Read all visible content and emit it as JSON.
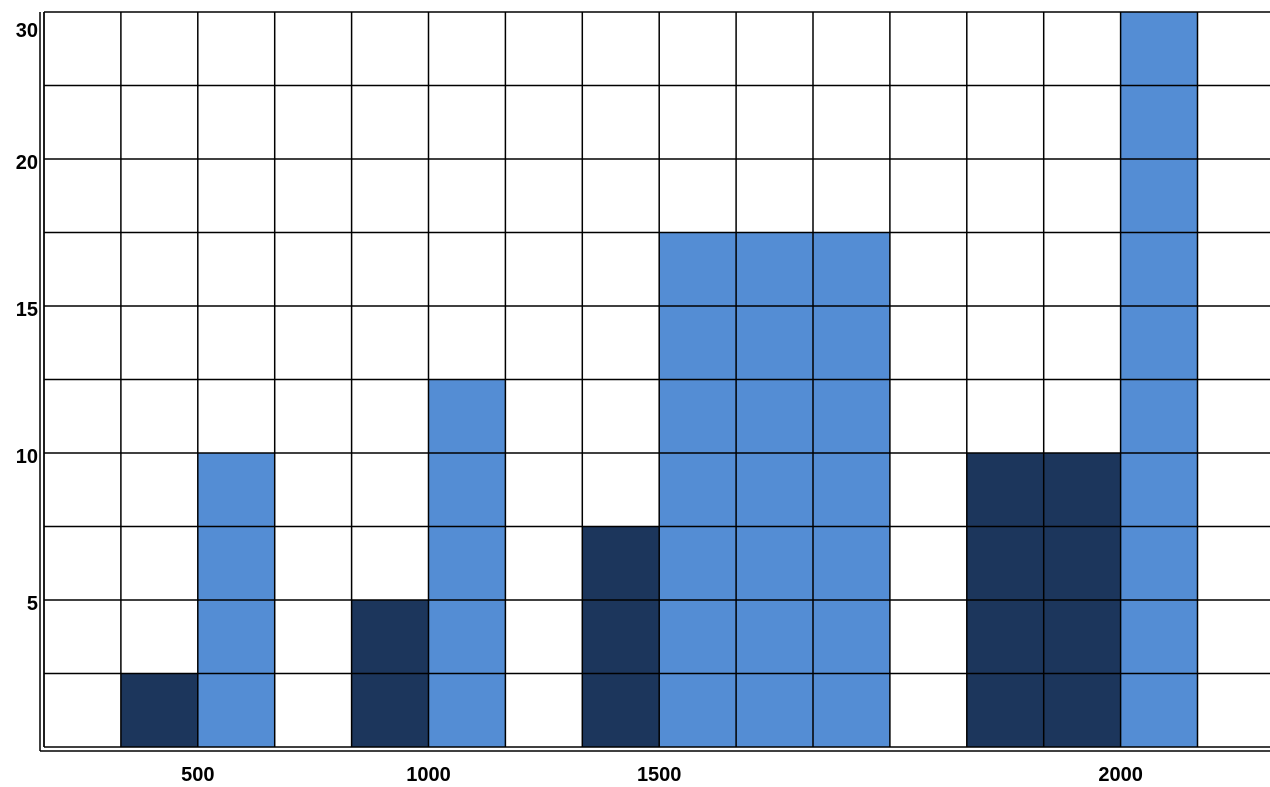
{
  "colors": {
    "dark_series": "#1c365c",
    "light_series": "#548dd4",
    "grid": "#000000",
    "background": "#ffffff"
  },
  "chart_data": {
    "type": "bar",
    "grid": true,
    "x_tick_labels": [
      "500",
      "1000",
      "1500",
      "2000"
    ],
    "y_tick_labels": [
      "5",
      "10",
      "15",
      "20",
      "30"
    ],
    "ylim": [
      0,
      30
    ],
    "cells_per_bar_unit": "blocks",
    "columns": [
      0,
      1,
      2,
      3,
      4,
      5,
      6,
      7,
      8,
      9,
      10,
      11,
      12,
      13,
      14,
      15
    ],
    "bars": [
      {
        "series": "dark",
        "column": 1,
        "blocks": 1
      },
      {
        "series": "light",
        "column": 2,
        "blocks": 4
      },
      {
        "series": "dark",
        "column": 4,
        "blocks": 2
      },
      {
        "series": "light",
        "column": 5,
        "blocks": 5
      },
      {
        "series": "dark",
        "column": 7,
        "blocks": 3
      },
      {
        "series": "light",
        "column": 8,
        "blocks": 7
      },
      {
        "series": "light",
        "column": 9,
        "blocks": 7
      },
      {
        "series": "light",
        "column": 10,
        "blocks": 7
      },
      {
        "series": "dark",
        "column": 12,
        "blocks": 4
      },
      {
        "series": "dark",
        "column": 13,
        "blocks": 4
      },
      {
        "series": "light",
        "column": 14,
        "blocks": 10
      }
    ]
  }
}
